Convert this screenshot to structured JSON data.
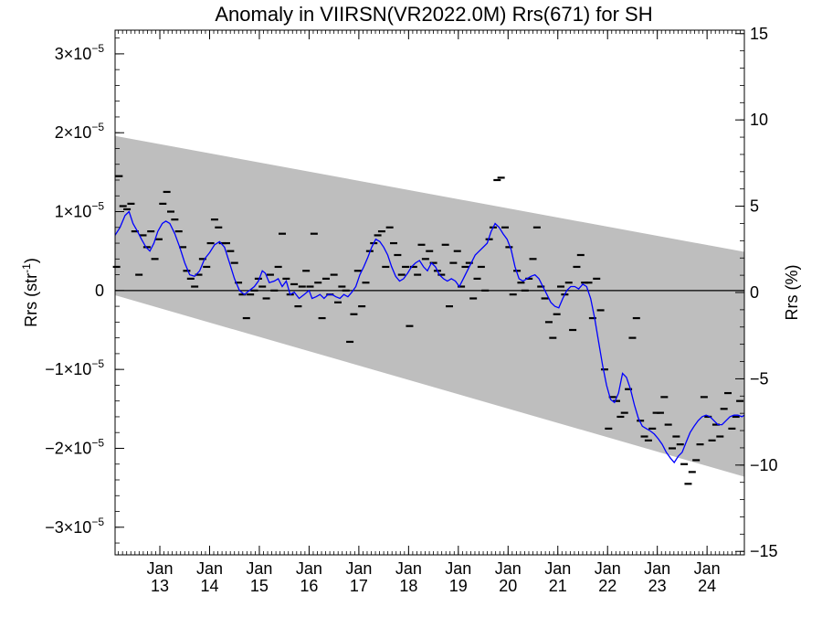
{
  "chart_data": {
    "type": "scatter",
    "title": "Anomaly in VIIRSN(VR2022.0M) Rrs(671) for SH",
    "ylabel": "Rrs (str",
    "ylabel_sup": "-1",
    "ylabel_end": ")",
    "y2label": "Rrs (%)",
    "xlim": [
      2012.1,
      2024.75
    ],
    "ylim": [
      -3.35e-05,
      3.3e-05
    ],
    "y2lim": [
      -15.2,
      15.2
    ],
    "grid": false,
    "legend": "none",
    "colors": {
      "points": "#000000",
      "smooth_line": "#0000ff",
      "band": "#bebebe",
      "zero_line": "#000000"
    },
    "x_ticks": [
      {
        "x": 2013,
        "line1": "Jan",
        "line2": "13"
      },
      {
        "x": 2014,
        "line1": "Jan",
        "line2": "14"
      },
      {
        "x": 2015,
        "line1": "Jan",
        "line2": "15"
      },
      {
        "x": 2016,
        "line1": "Jan",
        "line2": "16"
      },
      {
        "x": 2017,
        "line1": "Jan",
        "line2": "17"
      },
      {
        "x": 2018,
        "line1": "Jan",
        "line2": "18"
      },
      {
        "x": 2019,
        "line1": "Jan",
        "line2": "19"
      },
      {
        "x": 2020,
        "line1": "Jan",
        "line2": "20"
      },
      {
        "x": 2021,
        "line1": "Jan",
        "line2": "21"
      },
      {
        "x": 2022,
        "line1": "Jan",
        "line2": "22"
      },
      {
        "x": 2023,
        "line1": "Jan",
        "line2": "23"
      },
      {
        "x": 2024,
        "line1": "Jan",
        "line2": "24"
      }
    ],
    "y_ticks": [
      {
        "value": 3e-05,
        "base": "3×10",
        "exp": "−5"
      },
      {
        "value": 2e-05,
        "base": "2×10",
        "exp": "−5"
      },
      {
        "value": 1e-05,
        "base": "1×10",
        "exp": "−5"
      },
      {
        "value": 0,
        "base": "0",
        "exp": ""
      },
      {
        "value": -1e-05,
        "base": "−1×10",
        "exp": "−5"
      },
      {
        "value": -2e-05,
        "base": "−2×10",
        "exp": "−5"
      },
      {
        "value": -3e-05,
        "base": "−3×10",
        "exp": "−5"
      }
    ],
    "y2_ticks": [
      {
        "value": 15,
        "label": "15"
      },
      {
        "value": 10,
        "label": "10"
      },
      {
        "value": 5,
        "label": "5"
      },
      {
        "value": 0,
        "label": "0"
      },
      {
        "value": -5,
        "label": "−5"
      },
      {
        "value": -10,
        "label": "−10"
      },
      {
        "value": -15,
        "label": "−15"
      }
    ],
    "band": {
      "x": [
        2012.1,
        2024.75
      ],
      "upper": [
        1.96e-05,
        4.9e-06
      ],
      "lower": [
        -6e-07,
        -2.36e-05
      ]
    },
    "points": [
      [
        2012.13,
        3e-06
      ],
      [
        2012.18,
        1.45e-05
      ],
      [
        2012.26,
        1.07e-05
      ],
      [
        2012.34,
        1.03e-05
      ],
      [
        2012.42,
        1.1e-05
      ],
      [
        2012.5,
        7.5e-06
      ],
      [
        2012.58,
        2e-06
      ],
      [
        2012.66,
        7e-06
      ],
      [
        2012.74,
        5.5e-06
      ],
      [
        2012.82,
        7.5e-06
      ],
      [
        2012.9,
        4e-06
      ],
      [
        2012.98,
        6.5e-06
      ],
      [
        2013.06,
        1.1e-05
      ],
      [
        2013.14,
        1.25e-05
      ],
      [
        2013.22,
        1e-05
      ],
      [
        2013.3,
        9e-06
      ],
      [
        2013.38,
        7.5e-06
      ],
      [
        2013.46,
        5.5e-06
      ],
      [
        2013.54,
        2.5e-06
      ],
      [
        2013.62,
        1.5e-06
      ],
      [
        2013.7,
        5e-07
      ],
      [
        2013.78,
        2e-06
      ],
      [
        2013.86,
        4e-06
      ],
      [
        2013.94,
        3e-06
      ],
      [
        2014.02,
        6e-06
      ],
      [
        2014.1,
        9e-06
      ],
      [
        2014.18,
        8e-06
      ],
      [
        2014.26,
        6e-06
      ],
      [
        2014.34,
        6e-06
      ],
      [
        2014.42,
        5e-06
      ],
      [
        2014.5,
        3.5e-06
      ],
      [
        2014.58,
        1e-06
      ],
      [
        2014.66,
        -5e-07
      ],
      [
        2014.74,
        -3.5e-06
      ],
      [
        2014.82,
        -5e-07
      ],
      [
        2014.9,
        0.0
      ],
      [
        2014.98,
        1.5e-06
      ],
      [
        2015.06,
        5e-07
      ],
      [
        2015.14,
        -1e-06
      ],
      [
        2015.22,
        2e-06
      ],
      [
        2015.3,
        0.0
      ],
      [
        2015.38,
        3e-06
      ],
      [
        2015.46,
        7.2e-06
      ],
      [
        2015.54,
        1.5e-06
      ],
      [
        2015.62,
        -5e-07
      ],
      [
        2015.7,
        8e-07
      ],
      [
        2015.78,
        -2e-06
      ],
      [
        2015.86,
        5e-07
      ],
      [
        2015.94,
        2.5e-06
      ],
      [
        2016.02,
        5e-07
      ],
      [
        2016.1,
        7.2e-06
      ],
      [
        2016.18,
        1e-06
      ],
      [
        2016.26,
        -3.5e-06
      ],
      [
        2016.34,
        1.5e-06
      ],
      [
        2016.42,
        -5e-07
      ],
      [
        2016.5,
        2e-06
      ],
      [
        2016.58,
        -1.5e-06
      ],
      [
        2016.66,
        5e-07
      ],
      [
        2016.74,
        0.0
      ],
      [
        2016.82,
        -6.5e-06
      ],
      [
        2016.9,
        -3e-06
      ],
      [
        2016.98,
        2.5e-06
      ],
      [
        2017.06,
        -2e-06
      ],
      [
        2017.14,
        1e-06
      ],
      [
        2017.22,
        5e-06
      ],
      [
        2017.3,
        6e-06
      ],
      [
        2017.38,
        7e-06
      ],
      [
        2017.46,
        7.5e-06
      ],
      [
        2017.54,
        3e-06
      ],
      [
        2017.62,
        8e-06
      ],
      [
        2017.7,
        6e-06
      ],
      [
        2017.78,
        4.5e-06
      ],
      [
        2017.86,
        2e-06
      ],
      [
        2017.94,
        3e-06
      ],
      [
        2018.02,
        -4.5e-06
      ],
      [
        2018.1,
        3e-06
      ],
      [
        2018.18,
        2e-06
      ],
      [
        2018.26,
        5.8e-06
      ],
      [
        2018.34,
        4e-06
      ],
      [
        2018.42,
        5e-06
      ],
      [
        2018.5,
        3.5e-06
      ],
      [
        2018.58,
        2.5e-06
      ],
      [
        2018.66,
        2e-06
      ],
      [
        2018.74,
        5.8e-06
      ],
      [
        2018.82,
        -2e-06
      ],
      [
        2018.9,
        3.5e-06
      ],
      [
        2018.98,
        5e-06
      ],
      [
        2019.06,
        5e-07
      ],
      [
        2019.14,
        3e-06
      ],
      [
        2019.22,
        3.5e-06
      ],
      [
        2019.3,
        -1e-06
      ],
      [
        2019.38,
        1.5e-06
      ],
      [
        2019.46,
        3e-06
      ],
      [
        2019.54,
        0.0
      ],
      [
        2019.62,
        6.5e-06
      ],
      [
        2019.7,
        8e-06
      ],
      [
        2019.78,
        1.4e-05
      ],
      [
        2019.86,
        1.43e-05
      ],
      [
        2019.94,
        8e-06
      ],
      [
        2020.02,
        5.5e-06
      ],
      [
        2020.1,
        -5e-07
      ],
      [
        2020.18,
        2.5e-06
      ],
      [
        2020.26,
        1e-06
      ],
      [
        2020.34,
        0.0
      ],
      [
        2020.42,
        1.5e-06
      ],
      [
        2020.5,
        4e-06
      ],
      [
        2020.58,
        8e-06
      ],
      [
        2020.66,
        5e-07
      ],
      [
        2020.74,
        -1e-06
      ],
      [
        2020.82,
        -4e-06
      ],
      [
        2020.9,
        -6e-06
      ],
      [
        2020.98,
        -3e-06
      ],
      [
        2021.06,
        5e-07
      ],
      [
        2021.14,
        -5e-07
      ],
      [
        2021.22,
        1e-06
      ],
      [
        2021.3,
        -5e-06
      ],
      [
        2021.38,
        3e-06
      ],
      [
        2021.46,
        4.5e-06
      ],
      [
        2021.54,
        1e-06
      ],
      [
        2021.62,
        1e-06
      ],
      [
        2021.7,
        -3.5e-06
      ],
      [
        2021.78,
        1.5e-06
      ],
      [
        2021.86,
        -2.5e-06
      ],
      [
        2021.94,
        -1e-05
      ],
      [
        2022.02,
        -1.75e-05
      ],
      [
        2022.1,
        -1.35e-05
      ],
      [
        2022.18,
        -1.4e-05
      ],
      [
        2022.26,
        -1.6e-05
      ],
      [
        2022.34,
        -1.55e-05
      ],
      [
        2022.42,
        -1.25e-05
      ],
      [
        2022.5,
        -6e-06
      ],
      [
        2022.58,
        -3.5e-06
      ],
      [
        2022.66,
        -1.65e-05
      ],
      [
        2022.74,
        -1.85e-05
      ],
      [
        2022.82,
        -1.9e-05
      ],
      [
        2022.9,
        -1.75e-05
      ],
      [
        2022.98,
        -1.55e-05
      ],
      [
        2023.06,
        -1.55e-05
      ],
      [
        2023.14,
        -1.35e-05
      ],
      [
        2023.22,
        -1.7e-05
      ],
      [
        2023.3,
        -2e-05
      ],
      [
        2023.38,
        -1.85e-05
      ],
      [
        2023.46,
        -1.95e-05
      ],
      [
        2023.54,
        -2.2e-05
      ],
      [
        2023.62,
        -2.45e-05
      ],
      [
        2023.7,
        -2.3e-05
      ],
      [
        2023.78,
        -2.15e-05
      ],
      [
        2023.86,
        -1.95e-05
      ],
      [
        2023.94,
        -1.35e-05
      ],
      [
        2024.02,
        -1.6e-05
      ],
      [
        2024.1,
        -1.9e-05
      ],
      [
        2024.18,
        -1.7e-05
      ],
      [
        2024.26,
        -1.85e-05
      ],
      [
        2024.34,
        -1.5e-05
      ],
      [
        2024.42,
        -1.3e-05
      ],
      [
        2024.5,
        -1.75e-05
      ],
      [
        2024.58,
        -1.6e-05
      ],
      [
        2024.66,
        -1.4e-05
      ]
    ],
    "smooth_line": [
      [
        2012.1,
        7e-06
      ],
      [
        2012.2,
        8e-06
      ],
      [
        2012.3,
        9.5e-06
      ],
      [
        2012.38,
        1e-05
      ],
      [
        2012.46,
        8.5e-06
      ],
      [
        2012.55,
        7.5e-06
      ],
      [
        2012.63,
        6.5e-06
      ],
      [
        2012.72,
        5.5e-06
      ],
      [
        2012.8,
        5e-06
      ],
      [
        2012.88,
        6e-06
      ],
      [
        2012.96,
        7.5e-06
      ],
      [
        2013.05,
        8.5e-06
      ],
      [
        2013.12,
        8.8e-06
      ],
      [
        2013.2,
        8.5e-06
      ],
      [
        2013.3,
        7.2e-06
      ],
      [
        2013.4,
        5.5e-06
      ],
      [
        2013.5,
        3.5e-06
      ],
      [
        2013.6,
        2e-06
      ],
      [
        2013.7,
        1.8e-06
      ],
      [
        2013.8,
        2.5e-06
      ],
      [
        2013.9,
        4e-06
      ],
      [
        2014.0,
        4.8e-06
      ],
      [
        2014.1,
        5.8e-06
      ],
      [
        2014.2,
        6.2e-06
      ],
      [
        2014.3,
        5.5e-06
      ],
      [
        2014.4,
        3.5e-06
      ],
      [
        2014.5,
        1.5e-06
      ],
      [
        2014.6,
        0.0
      ],
      [
        2014.7,
        -5e-07
      ],
      [
        2014.8,
        0.0
      ],
      [
        2014.9,
        5e-07
      ],
      [
        2014.98,
        1.2e-06
      ],
      [
        2015.06,
        2.5e-06
      ],
      [
        2015.12,
        2.2e-06
      ],
      [
        2015.2,
        1e-06
      ],
      [
        2015.3,
        1.2e-06
      ],
      [
        2015.38,
        1.5e-06
      ],
      [
        2015.46,
        5e-07
      ],
      [
        2015.54,
        1.2e-06
      ],
      [
        2015.62,
        -5e-07
      ],
      [
        2015.7,
        -2e-07
      ],
      [
        2015.8,
        -1e-06
      ],
      [
        2015.9,
        -5e-07
      ],
      [
        2016.0,
        0.0
      ],
      [
        2016.06,
        -1e-06
      ],
      [
        2016.14,
        -8e-07
      ],
      [
        2016.22,
        -5e-07
      ],
      [
        2016.3,
        -1e-06
      ],
      [
        2016.38,
        -5e-07
      ],
      [
        2016.46,
        -5e-07
      ],
      [
        2016.54,
        -8e-07
      ],
      [
        2016.62,
        -1e-06
      ],
      [
        2016.7,
        -5e-07
      ],
      [
        2016.78,
        -8e-07
      ],
      [
        2016.86,
        -2e-07
      ],
      [
        2016.94,
        5e-07
      ],
      [
        2017.02,
        2e-06
      ],
      [
        2017.1,
        3e-06
      ],
      [
        2017.18,
        4.2e-06
      ],
      [
        2017.26,
        5.5e-06
      ],
      [
        2017.34,
        6.5e-06
      ],
      [
        2017.42,
        6.2e-06
      ],
      [
        2017.5,
        5.5e-06
      ],
      [
        2017.58,
        4.5e-06
      ],
      [
        2017.66,
        3e-06
      ],
      [
        2017.74,
        1.8e-06
      ],
      [
        2017.82,
        1.2e-06
      ],
      [
        2017.9,
        1.5e-06
      ],
      [
        2017.98,
        2.2e-06
      ],
      [
        2018.06,
        3e-06
      ],
      [
        2018.14,
        3.5e-06
      ],
      [
        2018.22,
        3.8e-06
      ],
      [
        2018.3,
        3e-06
      ],
      [
        2018.38,
        2.5e-06
      ],
      [
        2018.46,
        3.5e-06
      ],
      [
        2018.54,
        3e-06
      ],
      [
        2018.62,
        2e-06
      ],
      [
        2018.7,
        1.5e-06
      ],
      [
        2018.78,
        1.2e-06
      ],
      [
        2018.86,
        1.5e-06
      ],
      [
        2018.94,
        1.2e-06
      ],
      [
        2019.02,
        5e-07
      ],
      [
        2019.1,
        1.5e-06
      ],
      [
        2019.18,
        2.5e-06
      ],
      [
        2019.26,
        3.5e-06
      ],
      [
        2019.34,
        4.5e-06
      ],
      [
        2019.42,
        5e-06
      ],
      [
        2019.5,
        5.5e-06
      ],
      [
        2019.58,
        6e-06
      ],
      [
        2019.66,
        7.5e-06
      ],
      [
        2019.74,
        8.5e-06
      ],
      [
        2019.82,
        8e-06
      ],
      [
        2019.9,
        7.2e-06
      ],
      [
        2019.98,
        6.5e-06
      ],
      [
        2020.06,
        5.2e-06
      ],
      [
        2020.14,
        3e-06
      ],
      [
        2020.22,
        1.5e-06
      ],
      [
        2020.3,
        1.2e-06
      ],
      [
        2020.38,
        1.5e-06
      ],
      [
        2020.46,
        1.8e-06
      ],
      [
        2020.54,
        2e-06
      ],
      [
        2020.62,
        1.5e-06
      ],
      [
        2020.7,
        5e-07
      ],
      [
        2020.78,
        -5e-07
      ],
      [
        2020.86,
        -1.5e-06
      ],
      [
        2020.94,
        -2e-06
      ],
      [
        2021.02,
        -2.2e-06
      ],
      [
        2021.1,
        -1e-06
      ],
      [
        2021.18,
        0.0
      ],
      [
        2021.26,
        5e-07
      ],
      [
        2021.34,
        5e-07
      ],
      [
        2021.42,
        2e-07
      ],
      [
        2021.5,
        8e-07
      ],
      [
        2021.58,
        5e-07
      ],
      [
        2021.66,
        -1e-06
      ],
      [
        2021.74,
        -3.5e-06
      ],
      [
        2021.82,
        -6.5e-06
      ],
      [
        2021.9,
        -9.5e-06
      ],
      [
        2021.98,
        -1.2e-05
      ],
      [
        2022.06,
        -1.38e-05
      ],
      [
        2022.14,
        -1.42e-05
      ],
      [
        2022.22,
        -1.3e-05
      ],
      [
        2022.3,
        -1.05e-05
      ],
      [
        2022.38,
        -1.1e-05
      ],
      [
        2022.46,
        -1.25e-05
      ],
      [
        2022.54,
        -1.45e-05
      ],
      [
        2022.62,
        -1.62e-05
      ],
      [
        2022.7,
        -1.72e-05
      ],
      [
        2022.78,
        -1.75e-05
      ],
      [
        2022.86,
        -1.78e-05
      ],
      [
        2022.94,
        -1.82e-05
      ],
      [
        2023.02,
        -1.88e-05
      ],
      [
        2023.1,
        -1.95e-05
      ],
      [
        2023.18,
        -2.05e-05
      ],
      [
        2023.26,
        -2.12e-05
      ],
      [
        2023.34,
        -2.18e-05
      ],
      [
        2023.42,
        -2.1e-05
      ],
      [
        2023.5,
        -2.05e-05
      ],
      [
        2023.58,
        -1.92e-05
      ],
      [
        2023.66,
        -1.8e-05
      ],
      [
        2023.74,
        -1.72e-05
      ],
      [
        2023.82,
        -1.65e-05
      ],
      [
        2023.9,
        -1.6e-05
      ],
      [
        2023.98,
        -1.58e-05
      ],
      [
        2024.06,
        -1.6e-05
      ],
      [
        2024.14,
        -1.65e-05
      ],
      [
        2024.22,
        -1.7e-05
      ],
      [
        2024.3,
        -1.7e-05
      ],
      [
        2024.38,
        -1.65e-05
      ],
      [
        2024.46,
        -1.6e-05
      ],
      [
        2024.54,
        -1.58e-05
      ],
      [
        2024.62,
        -1.58e-05
      ],
      [
        2024.7,
        -1.6e-05
      ],
      [
        2024.75,
        -1.58e-05
      ]
    ]
  }
}
